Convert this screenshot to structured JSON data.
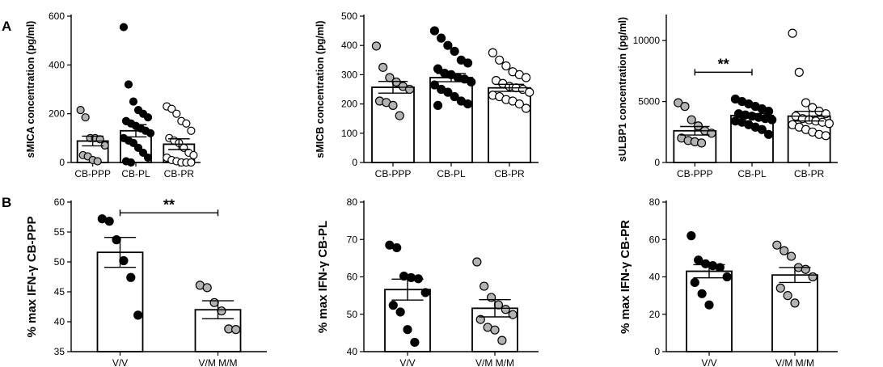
{
  "panel_labels": {
    "a": "A",
    "b": "B"
  },
  "colors": {
    "black": "#000000",
    "gray": "#b3b3b3",
    "white": "#ffffff"
  },
  "chart_data": [
    {
      "id": "a1",
      "type": "bar",
      "ylabel": "sMICA concentration (pg/ml)",
      "ylim": [
        0,
        600
      ],
      "yticks": [
        0,
        200,
        400,
        600
      ],
      "categories": [
        "CB-PPP",
        "CB-PL",
        "CB-PR"
      ],
      "fills": [
        "gray",
        "black",
        "white"
      ],
      "means": [
        88,
        130,
        75
      ],
      "sem": [
        20,
        25,
        22
      ],
      "points": [
        [
          215,
          185,
          100,
          100,
          95,
          70,
          30,
          25,
          10,
          5
        ],
        [
          555,
          320,
          250,
          215,
          200,
          185,
          170,
          160,
          150,
          140,
          130,
          120,
          100,
          90,
          80,
          60,
          40,
          20,
          5,
          0
        ],
        [
          230,
          220,
          200,
          170,
          160,
          130,
          100,
          90,
          80,
          60,
          40,
          30,
          20,
          10,
          5,
          0,
          0,
          0
        ]
      ],
      "significance": null
    },
    {
      "id": "a2",
      "type": "bar",
      "ylabel": "sMICB concentration (pg/ml)",
      "ylim": [
        0,
        500
      ],
      "yticks": [
        0,
        100,
        200,
        300,
        400,
        500
      ],
      "categories": [
        "CB-PPP",
        "CB-PL",
        "CB-PR"
      ],
      "fills": [
        "gray",
        "black",
        "white"
      ],
      "means": [
        257,
        290,
        255
      ],
      "sem": [
        20,
        14,
        12
      ],
      "points": [
        [
          398,
          325,
          290,
          275,
          260,
          250,
          210,
          205,
          195,
          160
        ],
        [
          450,
          425,
          400,
          380,
          350,
          340,
          320,
          305,
          300,
          290,
          285,
          275,
          265,
          250,
          240,
          225,
          210,
          200,
          195
        ],
        [
          375,
          350,
          330,
          310,
          300,
          290,
          280,
          270,
          260,
          255,
          250,
          240,
          230,
          225,
          215,
          210,
          200,
          185
        ]
      ],
      "significance": null
    },
    {
      "id": "a3",
      "type": "bar",
      "ylabel": "sULBP1 concentration (pg/ml)",
      "ylim": [
        0,
        12000
      ],
      "yticks": [
        0,
        5000,
        10000
      ],
      "categories": [
        "CB-PPP",
        "CB-PL",
        "CB-PR"
      ],
      "fills": [
        "gray",
        "black",
        "white"
      ],
      "means": [
        2600,
        3850,
        3800
      ],
      "sem": [
        350,
        160,
        400
      ],
      "points": [
        [
          4900,
          4600,
          3500,
          3000,
          2600,
          2400,
          2000,
          1800,
          1700,
          1600
        ],
        [
          5200,
          5000,
          4800,
          4600,
          4400,
          4200,
          4000,
          3900,
          3800,
          3700,
          3600,
          3500,
          3400,
          3300,
          3100,
          2900,
          2700,
          2300
        ],
        [
          10600,
          7400,
          4900,
          4500,
          4200,
          4000,
          3800,
          3600,
          3500,
          3400,
          3300,
          3200,
          3100,
          2900,
          2700,
          2500,
          2300,
          2200
        ]
      ],
      "significance": {
        "from": 0,
        "to": 1,
        "y": 7400,
        "label": "**"
      }
    },
    {
      "id": "b1",
      "type": "bar",
      "ylabel": "% max IFN-γ CB-PPP",
      "ylim": [
        35,
        60
      ],
      "yticks": [
        35,
        40,
        45,
        50,
        55,
        60
      ],
      "categories": [
        "V/V",
        "V/M M/M"
      ],
      "fills": [
        "black",
        "gray"
      ],
      "means": [
        51.6,
        42
      ],
      "sem": [
        2.5,
        1.5
      ],
      "points": [
        [
          57.2,
          56.8,
          53.7,
          50.2,
          47.4,
          41.1
        ],
        [
          46.1,
          45.7,
          43.2,
          41.8,
          38.8,
          38.7
        ]
      ],
      "significance": {
        "from": 0,
        "to": 1,
        "y": 58.2,
        "label": "**"
      }
    },
    {
      "id": "b2",
      "type": "bar",
      "ylabel": "% max IFN-γ CB-PL",
      "ylim": [
        40,
        80
      ],
      "yticks": [
        40,
        50,
        60,
        70,
        80
      ],
      "categories": [
        "V/V",
        "V/M M/M"
      ],
      "fills": [
        "black",
        "gray"
      ],
      "means": [
        56.6,
        51.6
      ],
      "sem": [
        2.8,
        2.3
      ],
      "points": [
        [
          68.5,
          67.8,
          60.2,
          59.8,
          59.5,
          55.8,
          52.4,
          50.6,
          45.9,
          42.5
        ],
        [
          64.0,
          57.5,
          54.5,
          52.5,
          51.3,
          49.9,
          48.6,
          46.5,
          45.8,
          43.0
        ]
      ],
      "significance": null
    },
    {
      "id": "b3",
      "type": "bar",
      "ylabel": "% max IFN-γ CB-PR",
      "ylim": [
        0,
        80
      ],
      "yticks": [
        0,
        20,
        40,
        60,
        80
      ],
      "categories": [
        "V/V",
        "V/M M/M"
      ],
      "fills": [
        "black",
        "gray"
      ],
      "means": [
        43,
        41
      ],
      "sem": [
        3.5,
        4
      ],
      "points": [
        [
          62,
          49,
          47,
          46,
          45,
          40,
          37,
          31,
          25
        ],
        [
          57,
          54,
          51,
          45,
          44,
          40,
          34,
          30,
          26
        ]
      ],
      "significance": null
    }
  ]
}
